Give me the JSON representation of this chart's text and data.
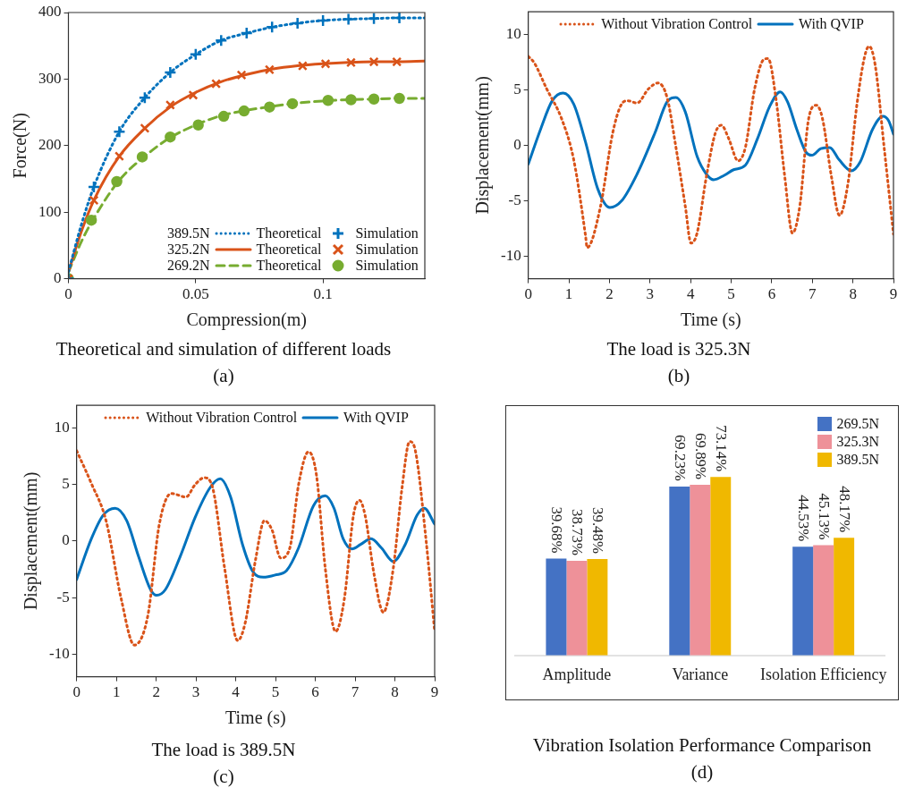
{
  "chart_data": [
    {
      "type": "line",
      "title": "Theoretical and simulation of different loads",
      "subtitle": "(a)",
      "xlabel": "Compression(m)",
      "ylabel": "Force(N)",
      "xlim": [
        0,
        0.14
      ],
      "xticks": [
        0,
        0.05,
        0.1
      ],
      "ylim": [
        0,
        400
      ],
      "yticks": [
        0,
        100,
        200,
        300,
        400
      ],
      "legend": "bottom right",
      "annotations": [
        "389.5N",
        "325.2N",
        "269.2N"
      ],
      "series": [
        {
          "type": "line",
          "name": "Theoretical",
          "color": "#0072bd",
          "line_style": "dotted",
          "marker": "none",
          "x": [
            0,
            0.005,
            0.01,
            0.02,
            0.03,
            0.04,
            0.05,
            0.06,
            0.07,
            0.08,
            0.09,
            0.1,
            0.11,
            0.12,
            0.13,
            0.14
          ],
          "values": [
            10,
            80,
            138,
            221,
            272,
            310,
            337,
            358,
            369,
            378,
            384,
            388,
            390,
            391,
            392,
            392
          ]
        },
        {
          "type": "line",
          "name": "Theoretical",
          "color": "#d95319",
          "line_style": "solid",
          "marker": "none",
          "x": [
            0,
            0.005,
            0.01,
            0.02,
            0.03,
            0.04,
            0.05,
            0.06,
            0.07,
            0.08,
            0.09,
            0.1,
            0.11,
            0.12,
            0.13,
            0.14
          ],
          "values": [
            10,
            70,
            118,
            184,
            226,
            258,
            280,
            296,
            307,
            315,
            320,
            323,
            325,
            326,
            326,
            327
          ]
        },
        {
          "type": "line",
          "name": "Theoretical",
          "color": "#77ac30",
          "line_style": "dashed",
          "marker": "none",
          "x": [
            0,
            0.005,
            0.01,
            0.02,
            0.03,
            0.04,
            0.05,
            0.06,
            0.07,
            0.08,
            0.09,
            0.1,
            0.11,
            0.12,
            0.13,
            0.14
          ],
          "values": [
            10,
            55,
            91,
            148,
            184,
            212,
            231,
            245,
            253,
            259,
            264,
            267,
            269,
            270,
            271,
            271
          ]
        },
        {
          "type": "scatter",
          "name": "Simulation",
          "color": "#0072bd",
          "marker": "cross",
          "x": [
            0,
            0.01,
            0.02,
            0.03,
            0.04,
            0.05,
            0.06,
            0.07,
            0.08,
            0.09,
            0.1,
            0.11,
            0.12,
            0.13
          ],
          "values": [
            0,
            138,
            221,
            272,
            310,
            337,
            358,
            369,
            378,
            384,
            388,
            390,
            391,
            392
          ]
        },
        {
          "type": "scatter",
          "name": "Simulation",
          "color": "#d95319",
          "marker": "x",
          "x": [
            0,
            0.01,
            0.02,
            0.03,
            0.04,
            0.049,
            0.058,
            0.068,
            0.079,
            0.092,
            0.101,
            0.111,
            0.12,
            0.129
          ],
          "values": [
            0,
            118,
            184,
            226,
            261,
            276,
            293,
            306,
            314,
            320,
            323,
            325,
            326,
            326
          ]
        },
        {
          "type": "scatter",
          "name": "Simulation",
          "color": "#77ac30",
          "marker": "circle",
          "x": [
            0,
            0.009,
            0.019,
            0.029,
            0.04,
            0.051,
            0.061,
            0.069,
            0.079,
            0.088,
            0.102,
            0.111,
            0.12,
            0.13
          ],
          "values": [
            0,
            88,
            146,
            183,
            213,
            231,
            244,
            252,
            258,
            263,
            268,
            269,
            270,
            271
          ]
        }
      ]
    },
    {
      "type": "line",
      "title": "The load is 325.3N",
      "subtitle": "(b)",
      "xlabel": "Time (s)",
      "ylabel": "Displacement(mm)",
      "xlim": [
        0,
        9
      ],
      "xticks": [
        0,
        1,
        2,
        3,
        4,
        5,
        6,
        7,
        8,
        9
      ],
      "ylim": [
        -12,
        12
      ],
      "yticks": [
        -10,
        -5,
        0,
        5,
        10
      ],
      "legend": "top",
      "series": [
        {
          "name": "Without Vibration Control",
          "color": "#d95319",
          "line_style": "dotted",
          "x": [
            0,
            0.15,
            0.45,
            0.82,
            1.12,
            1.41,
            1.45,
            1.78,
            2.08,
            2.3,
            2.45,
            2.68,
            2.97,
            3.2,
            3.42,
            3.64,
            3.87,
            4.01,
            4.16,
            4.39,
            4.61,
            4.76,
            4.94,
            5.17,
            5.35,
            5.58,
            5.8,
            5.91,
            6.1,
            6.32,
            6.51,
            6.69,
            6.91,
            7.1,
            7.25,
            7.47,
            7.67,
            7.88,
            8.1,
            8.29,
            8.4,
            8.55,
            8.77,
            9
          ],
          "values": [
            8.0,
            7.4,
            5.1,
            2.4,
            -1.3,
            -8.1,
            -9.2,
            -5.5,
            1.1,
            3.7,
            4.0,
            3.8,
            5.1,
            5.6,
            4.3,
            -0.2,
            -5.5,
            -8.8,
            -7.9,
            -2.8,
            1.1,
            1.8,
            0.6,
            -1.4,
            -0.2,
            5.1,
            7.7,
            7.8,
            4.3,
            -2.8,
            -7.9,
            -5.5,
            2.4,
            3.6,
            2.4,
            -2.8,
            -6.3,
            -3.4,
            3.7,
            8.0,
            8.9,
            7.2,
            -0.2,
            -8.0
          ]
        },
        {
          "name": "With QVIP",
          "color": "#0072bd",
          "line_style": "solid",
          "x": [
            0,
            0.3,
            0.59,
            0.86,
            1.12,
            1.41,
            1.71,
            2.01,
            2.3,
            2.68,
            3.12,
            3.42,
            3.64,
            3.87,
            4.16,
            4.39,
            4.57,
            4.83,
            5.06,
            5.35,
            5.65,
            5.95,
            6.21,
            6.39,
            6.62,
            6.84,
            6.99,
            7.21,
            7.43,
            7.66,
            7.96,
            8.18,
            8.48,
            8.74,
            8.88,
            9
          ],
          "values": [
            -1.7,
            1.4,
            4.0,
            4.7,
            3.7,
            0.3,
            -3.9,
            -5.6,
            -5.0,
            -2.6,
            1.1,
            3.9,
            4.3,
            3.0,
            -1.0,
            -2.6,
            -3.1,
            -2.7,
            -2.2,
            -1.8,
            0.6,
            3.5,
            4.8,
            3.9,
            1.4,
            -0.6,
            -0.9,
            -0.3,
            -0.2,
            -1.3,
            -2.3,
            -1.5,
            1.4,
            2.6,
            2.2,
            1.0
          ]
        }
      ]
    },
    {
      "type": "line",
      "title": "The load is 389.5N",
      "subtitle": "(c)",
      "xlabel": "Time (s)",
      "ylabel": "Displacement(mm)",
      "xlim": [
        0,
        9
      ],
      "xticks": [
        0,
        1,
        2,
        3,
        4,
        5,
        6,
        7,
        8,
        9
      ],
      "ylim": [
        -12,
        12
      ],
      "yticks": [
        -10,
        -5,
        0,
        5,
        10
      ],
      "legend": "top",
      "series": [
        {
          "name": "Without Vibration Control",
          "color": "#d95319",
          "line_style": "dotted",
          "x": [
            0,
            0.37,
            0.74,
            1.12,
            1.45,
            1.79,
            2.08,
            2.38,
            2.75,
            2.98,
            3.21,
            3.42,
            3.72,
            4.05,
            4.24,
            4.5,
            4.72,
            4.91,
            5.13,
            5.36,
            5.58,
            5.83,
            6.03,
            6.25,
            6.51,
            6.73,
            6.96,
            7.11,
            7.25,
            7.48,
            7.71,
            7.96,
            8.18,
            8.37,
            8.52,
            8.78,
            9
          ],
          "values": [
            8.0,
            5.1,
            1.8,
            -5.1,
            -9.2,
            -6.6,
            1.5,
            4.2,
            3.9,
            5.0,
            5.6,
            4.7,
            -2.4,
            -8.8,
            -7.2,
            -1.6,
            1.8,
            1.0,
            -1.5,
            -0.6,
            5.0,
            7.9,
            5.8,
            -2.4,
            -8.0,
            -5.1,
            2.3,
            3.6,
            2.3,
            -3.0,
            -6.3,
            -2.4,
            4.7,
            8.8,
            7.9,
            0.2,
            -8.0
          ]
        },
        {
          "name": "With QVIP",
          "color": "#0072bd",
          "line_style": "solid",
          "x": [
            0,
            0.37,
            0.67,
            0.97,
            1.26,
            1.56,
            1.86,
            2.01,
            2.23,
            2.6,
            2.98,
            3.35,
            3.61,
            3.87,
            4.17,
            4.43,
            4.69,
            4.99,
            5.28,
            5.58,
            5.95,
            6.25,
            6.47,
            6.7,
            6.92,
            7.14,
            7.4,
            7.66,
            7.96,
            8.26,
            8.56,
            8.74,
            9
          ],
          "values": [
            -3.4,
            0.2,
            2.3,
            2.9,
            1.8,
            -1.4,
            -4.3,
            -4.8,
            -4.3,
            -1.4,
            2.1,
            4.7,
            5.5,
            3.9,
            -0.3,
            -2.7,
            -3.2,
            -3.0,
            -2.6,
            -0.6,
            3.1,
            4.0,
            2.9,
            0.2,
            -0.7,
            -0.3,
            0.2,
            -0.6,
            -1.8,
            -0.3,
            2.3,
            2.9,
            1.5
          ]
        }
      ]
    },
    {
      "type": "bar",
      "title": "Vibration Isolation Performance Comparison",
      "subtitle": "(d)",
      "categories": [
        "Amplitude",
        "Variance",
        "Isolation Efficiency"
      ],
      "ylim": [
        0,
        100
      ],
      "tick_labels": "x",
      "legend": "top right",
      "data_labels": true,
      "series": [
        {
          "name": "269.5N",
          "color": "#4472c4",
          "values": [
            39.68,
            69.23,
            44.53
          ],
          "value_labels": [
            "39.68%",
            "69.23%",
            "44.53%"
          ]
        },
        {
          "name": "325.3N",
          "color": "#ee9199",
          "values": [
            38.73,
            69.89,
            45.13
          ],
          "value_labels": [
            "38.73%",
            "69.89%",
            "45.13%"
          ]
        },
        {
          "name": "389.5N",
          "color": "#f0b800",
          "values": [
            39.48,
            73.14,
            48.17
          ],
          "value_labels": [
            "39.48%",
            "73.14%",
            "48.17%"
          ]
        }
      ]
    }
  ]
}
